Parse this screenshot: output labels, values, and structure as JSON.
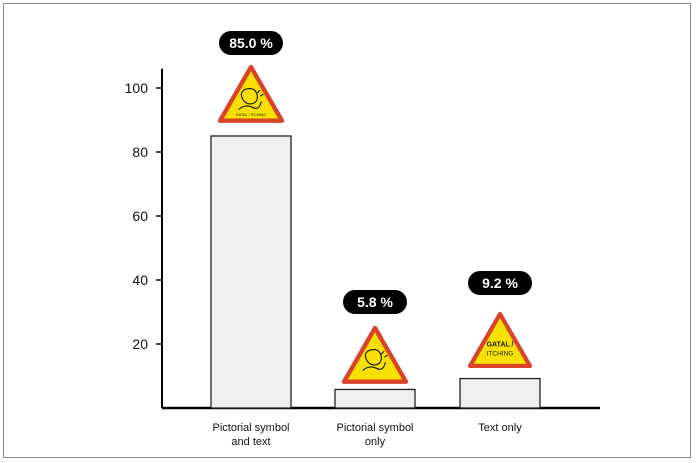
{
  "chart_data": {
    "type": "bar",
    "categories": [
      "Pictorial symbol and text",
      "Pictorial symbol only",
      "Text only"
    ],
    "category_lines": [
      [
        "Pictorial symbol",
        "and text"
      ],
      [
        "Pictorial symbol",
        "only"
      ],
      [
        "Text only"
      ]
    ],
    "values": [
      85.0,
      5.8,
      9.2
    ],
    "value_labels": [
      "85.0 %",
      "5.8 %",
      "9.2 %"
    ],
    "yticks": [
      20,
      40,
      60,
      80,
      100
    ],
    "ylim": [
      0,
      106
    ],
    "xlabel": "",
    "ylabel": "",
    "title": "",
    "grid": false,
    "bar_fill": "#efeff1",
    "bar_stroke": "#222222",
    "badge_color": "#000000",
    "sign_colors": {
      "border": "#d9432a",
      "fill": "#f8e000",
      "icon": "#1a1a1a"
    },
    "sign_icons": [
      "scratching-figure-icon",
      "scratching-figure-icon",
      "text-sign"
    ],
    "sign_texts": [
      "GATAL / ITCHING",
      "",
      "GATAL / ITCHING"
    ]
  }
}
